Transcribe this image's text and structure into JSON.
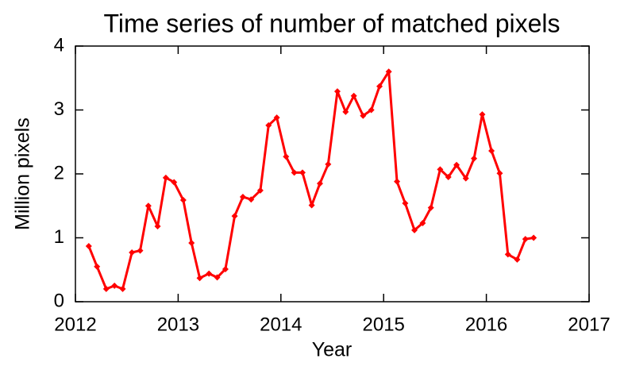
{
  "chart_data": {
    "type": "line",
    "title": "Time series of number of matched pixels",
    "x_label": "Year",
    "y_label": "Million pixels",
    "color": "#ff0000",
    "x": [
      2012.13,
      2012.21,
      2012.3,
      2012.38,
      2012.46,
      2012.55,
      2012.63,
      2012.71,
      2012.8,
      2012.88,
      2012.96,
      2013.05,
      2013.13,
      2013.21,
      2013.3,
      2013.38,
      2013.46,
      2013.55,
      2013.63,
      2013.71,
      2013.8,
      2013.88,
      2013.96,
      2014.05,
      2014.13,
      2014.21,
      2014.3,
      2014.38,
      2014.46,
      2014.55,
      2014.63,
      2014.71,
      2014.8,
      2014.88,
      2014.96,
      2015.05,
      2015.13,
      2015.21,
      2015.3,
      2015.38,
      2015.46,
      2015.55,
      2015.63,
      2015.71,
      2015.8,
      2015.88,
      2015.96,
      2016.05,
      2016.13,
      2016.21,
      2016.3,
      2016.38,
      2016.46
    ],
    "values": [
      0.87,
      0.55,
      0.2,
      0.25,
      0.2,
      0.77,
      0.8,
      1.5,
      1.18,
      1.94,
      1.87,
      1.59,
      0.92,
      0.37,
      0.44,
      0.38,
      0.51,
      1.34,
      1.64,
      1.6,
      1.74,
      2.76,
      2.88,
      2.27,
      2.02,
      2.02,
      1.51,
      1.85,
      2.15,
      3.29,
      2.97,
      3.22,
      2.91,
      3.0,
      3.37,
      3.6,
      1.88,
      1.54,
      1.12,
      1.23,
      1.47,
      2.07,
      1.95,
      2.14,
      1.93,
      2.24,
      2.93,
      2.36,
      2.01,
      0.74,
      0.66,
      0.98,
      1.0
    ],
    "xlim": [
      2012,
      2017
    ],
    "xticks": [
      2012,
      2013,
      2014,
      2015,
      2016,
      2017
    ],
    "ylim": [
      0,
      4
    ],
    "yticks": [
      0,
      1,
      2,
      3,
      4
    ]
  }
}
